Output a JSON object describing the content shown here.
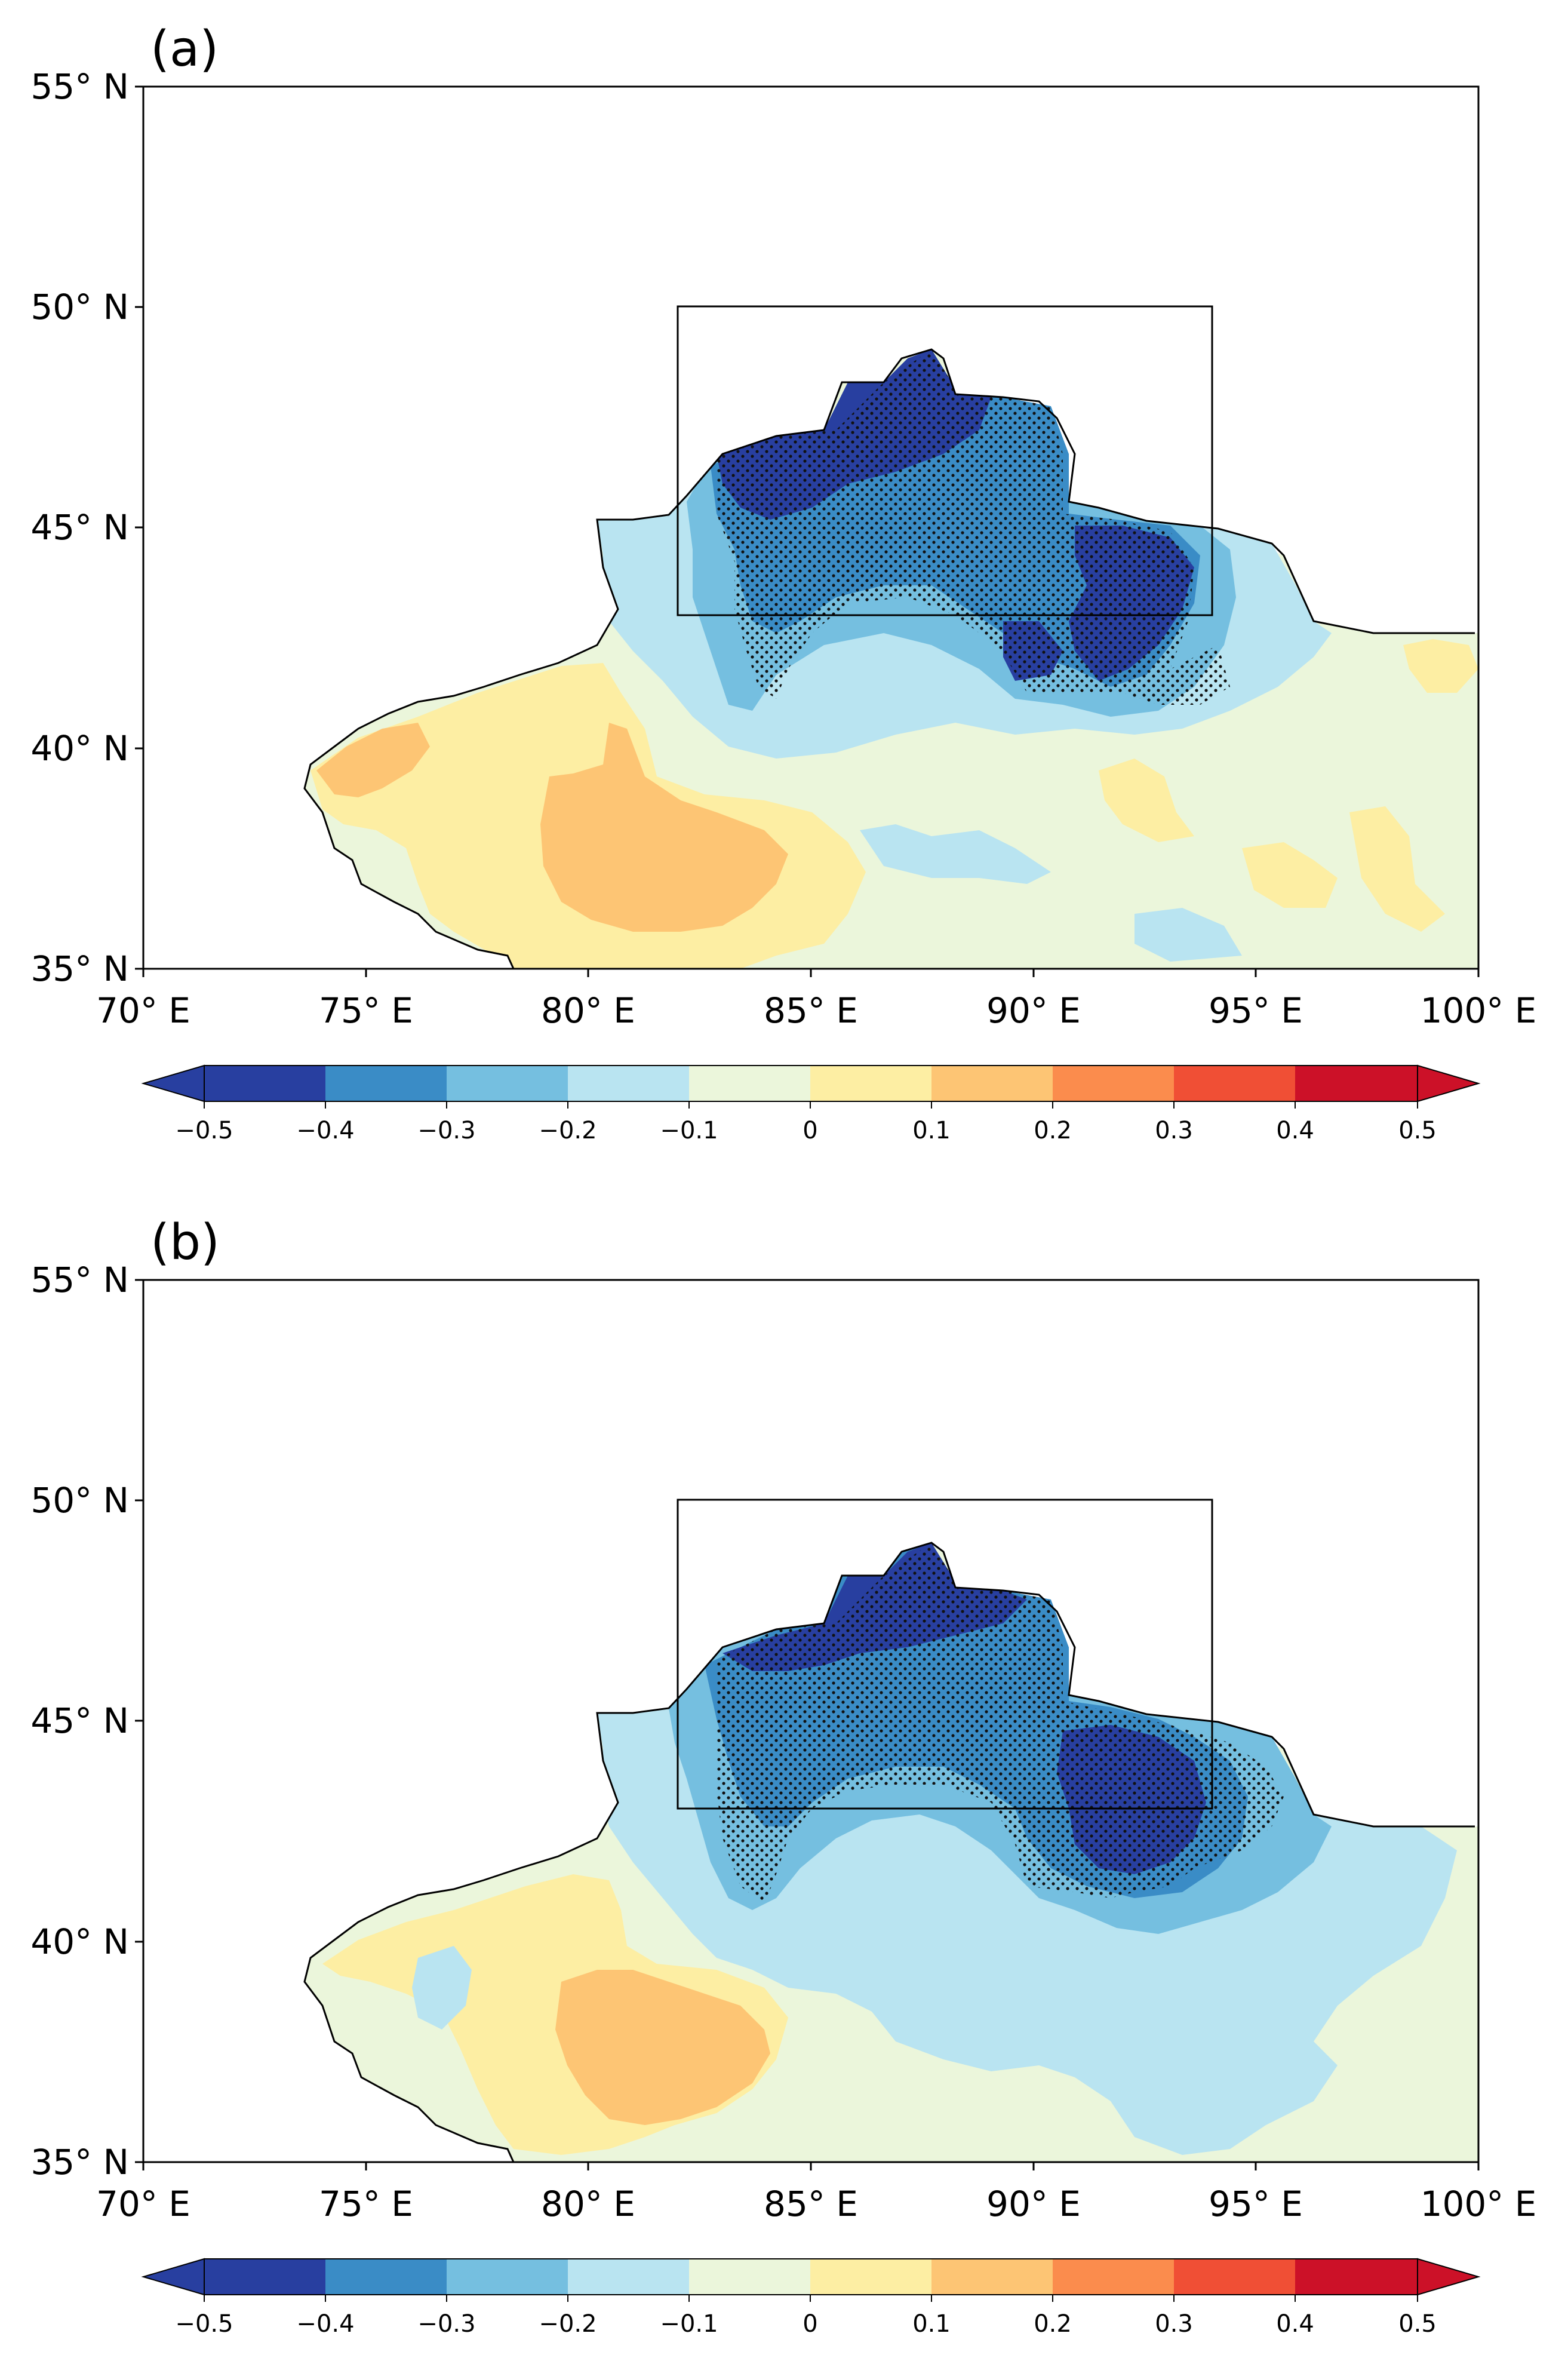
{
  "figure": {
    "panels": [
      {
        "id": "a",
        "label": "(a)",
        "x_ticks": [
          "70° E",
          "75° E",
          "80° E",
          "85° E",
          "90° E",
          "95° E",
          "100° E"
        ],
        "y_ticks": [
          "55° N",
          "50° N",
          "45° N",
          "40° N",
          "35° N"
        ],
        "colorbar_labels": [
          "−0.5",
          "−0.4",
          "−0.3",
          "−0.2",
          "−0.1",
          "0",
          "0.1",
          "0.2",
          "0.3",
          "0.4",
          "0.5"
        ]
      },
      {
        "id": "b",
        "label": "(b)",
        "x_ticks": [
          "70° E",
          "75° E",
          "80° E",
          "85° E",
          "90° E",
          "95° E",
          "100° E"
        ],
        "y_ticks": [
          "55° N",
          "50° N",
          "45° N",
          "40° N",
          "35° N"
        ],
        "colorbar_labels": [
          "−0.5",
          "−0.4",
          "−0.3",
          "−0.2",
          "−0.1",
          "0",
          "0.1",
          "0.2",
          "0.3",
          "0.4",
          "0.5"
        ]
      }
    ],
    "map_extent": {
      "lon": [
        70,
        100
      ],
      "lat": [
        35,
        55
      ]
    },
    "study_box": {
      "lon": [
        82,
        94
      ],
      "lat": [
        43,
        50
      ]
    },
    "colorbar": {
      "levels": [
        -0.5,
        -0.4,
        -0.3,
        -0.2,
        -0.1,
        0,
        0.1,
        0.2,
        0.3,
        0.4,
        0.5
      ],
      "colors": [
        "#283fa0",
        "#3a8cc6",
        "#75bfe0",
        "#b9e4f1",
        "#ebf6db",
        "#fdeea3",
        "#fdc574",
        "#fb8c4d",
        "#f04f35",
        "#cc1128"
      ],
      "extend_low_color": "#283fa0",
      "extend_high_color": "#cc1128"
    }
  }
}
